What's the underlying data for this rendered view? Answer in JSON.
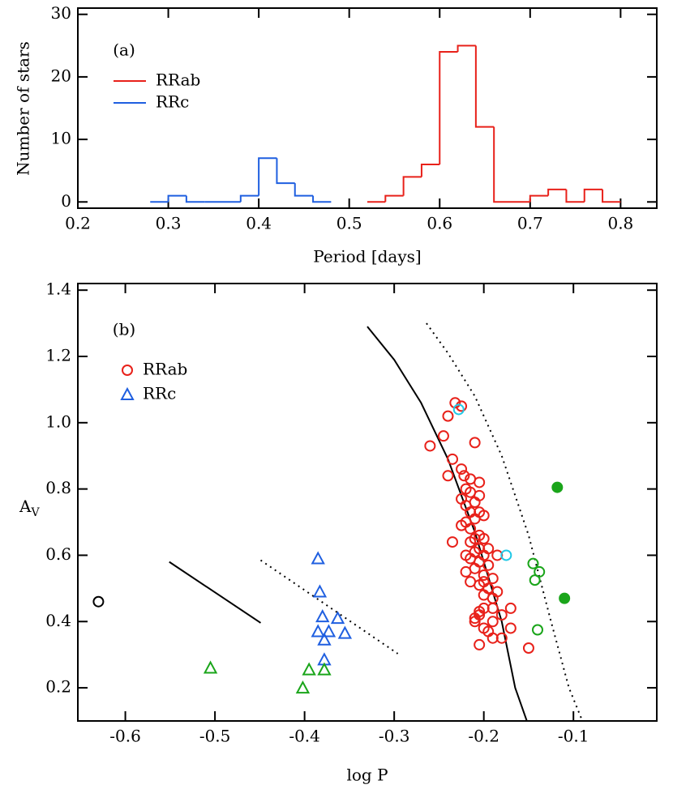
{
  "chart_data": [
    {
      "type": "histogram",
      "panel_label": "(a)",
      "x_label": "Period [days]",
      "y_label": "Number of stars",
      "xlim": [
        0.2,
        0.84
      ],
      "ylim": [
        -1,
        31
      ],
      "xticks": [
        0.2,
        0.3,
        0.4,
        0.5,
        0.6,
        0.7,
        0.8
      ],
      "yticks": [
        0,
        10,
        20,
        30
      ],
      "series": [
        {
          "name": "RRab",
          "color": "#e8211a",
          "bins": [
            0.52,
            0.54,
            0.56,
            0.58,
            0.6,
            0.62,
            0.64,
            0.66,
            0.68,
            0.7,
            0.72,
            0.74,
            0.76,
            0.78,
            0.8
          ],
          "values": [
            0,
            1,
            4,
            6,
            24,
            25,
            12,
            0,
            0,
            1,
            2,
            0,
            2,
            0
          ]
        },
        {
          "name": "RRc",
          "color": "#1f5fe0",
          "bins": [
            0.28,
            0.3,
            0.32,
            0.34,
            0.36,
            0.38,
            0.4,
            0.42,
            0.44,
            0.46,
            0.48
          ],
          "values": [
            0,
            1,
            0,
            0,
            0,
            1,
            7,
            3,
            1,
            0
          ]
        }
      ]
    },
    {
      "type": "scatter",
      "panel_label": "(b)",
      "x_label": "log P",
      "y_label": {
        "main": "A",
        "subscript": "V"
      },
      "xlim": [
        -0.653,
        -0.007
      ],
      "ylim": [
        0.1,
        1.42
      ],
      "xticks": [
        -0.6,
        -0.5,
        -0.4,
        -0.3,
        -0.2,
        -0.1
      ],
      "yticks": [
        0.2,
        0.4,
        0.6,
        0.8,
        {
          "value": 1,
          "label": "1.0"
        },
        1.2,
        1.4
      ],
      "series": [
        {
          "name": "RRab",
          "color": "#e8211a",
          "marker": "circle",
          "filled": false,
          "x": [
            -0.232,
            -0.225,
            -0.24,
            -0.26,
            -0.245,
            -0.235,
            -0.21,
            -0.225,
            -0.222,
            -0.24,
            -0.215,
            -0.205,
            -0.22,
            -0.215,
            -0.225,
            -0.205,
            -0.21,
            -0.22,
            -0.215,
            -0.205,
            -0.2,
            -0.21,
            -0.22,
            -0.225,
            -0.215,
            -0.205,
            -0.21,
            -0.2,
            -0.215,
            -0.235,
            -0.205,
            -0.195,
            -0.21,
            -0.22,
            -0.2,
            -0.185,
            -0.215,
            -0.205,
            -0.195,
            -0.21,
            -0.22,
            -0.2,
            -0.19,
            -0.215,
            -0.2,
            -0.205,
            -0.195,
            -0.185,
            -0.2,
            -0.19,
            -0.2,
            -0.205,
            -0.19,
            -0.17,
            -0.18,
            -0.21,
            -0.205,
            -0.19,
            -0.2,
            -0.17,
            -0.195,
            -0.18,
            -0.19,
            -0.205,
            -0.15,
            -0.21
          ],
          "y": [
            1.06,
            1.05,
            1.02,
            0.93,
            0.96,
            0.89,
            0.94,
            0.86,
            0.84,
            0.84,
            0.83,
            0.82,
            0.8,
            0.79,
            0.77,
            0.78,
            0.76,
            0.75,
            0.73,
            0.73,
            0.72,
            0.71,
            0.7,
            0.69,
            0.68,
            0.66,
            0.65,
            0.65,
            0.64,
            0.64,
            0.62,
            0.62,
            0.61,
            0.6,
            0.6,
            0.6,
            0.59,
            0.58,
            0.57,
            0.56,
            0.55,
            0.54,
            0.53,
            0.52,
            0.52,
            0.51,
            0.5,
            0.49,
            0.48,
            0.47,
            0.44,
            0.43,
            0.44,
            0.44,
            0.42,
            0.41,
            0.42,
            0.4,
            0.38,
            0.38,
            0.37,
            0.35,
            0.35,
            0.33,
            0.32,
            0.4
          ]
        },
        {
          "name": "RRc",
          "color": "#1f5fe0",
          "marker": "triangle",
          "filled": false,
          "x": [
            -0.385,
            -0.383,
            -0.38,
            -0.363,
            -0.385,
            -0.373,
            -0.355,
            -0.378,
            -0.378
          ],
          "y": [
            0.59,
            0.49,
            0.415,
            0.41,
            0.37,
            0.37,
            0.365,
            0.345,
            0.285
          ]
        },
        {
          "color": "#22c8e6",
          "marker": "circle",
          "filled": false,
          "x": [
            -0.228,
            -0.175
          ],
          "y": [
            1.04,
            0.6
          ]
        },
        {
          "color": "#1aa51a",
          "marker": "circle",
          "filled": false,
          "x": [
            -0.145,
            -0.138,
            -0.143,
            -0.14
          ],
          "y": [
            0.575,
            0.55,
            0.525,
            0.375
          ]
        },
        {
          "color": "#000000",
          "marker": "circle",
          "filled": false,
          "x": [
            -0.63
          ],
          "y": [
            0.46
          ]
        },
        {
          "color": "#1aa51a",
          "marker": "circle",
          "filled": true,
          "x": [
            -0.118,
            -0.11
          ],
          "y": [
            0.805,
            0.47
          ]
        },
        {
          "color": "#1aa51a",
          "marker": "triangle",
          "filled": false,
          "x": [
            -0.505,
            -0.395,
            -0.378,
            -0.402
          ],
          "y": [
            0.26,
            0.255,
            0.255,
            0.2
          ]
        }
      ],
      "lines": [
        {
          "style": "solid",
          "x": [
            -0.33,
            -0.3,
            -0.27,
            -0.24,
            -0.21,
            -0.18,
            -0.165,
            -0.152
          ],
          "y": [
            1.29,
            1.19,
            1.06,
            0.89,
            0.67,
            0.4,
            0.2,
            0.1
          ]
        },
        {
          "style": "dotted",
          "x": [
            -0.264,
            -0.24,
            -0.21,
            -0.18,
            -0.15,
            -0.125,
            -0.105,
            -0.09
          ],
          "y": [
            1.3,
            1.21,
            1.08,
            0.9,
            0.66,
            0.4,
            0.2,
            0.1
          ]
        },
        {
          "style": "solid",
          "x": [
            -0.551,
            -0.449
          ],
          "y": [
            0.58,
            0.396
          ]
        },
        {
          "style": "dotted",
          "x": [
            -0.449,
            -0.296
          ],
          "y": [
            0.585,
            0.303
          ]
        }
      ]
    }
  ]
}
